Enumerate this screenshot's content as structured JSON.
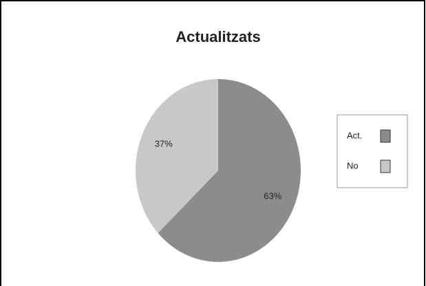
{
  "chart_data": {
    "type": "pie",
    "title": "Actualitzats",
    "categories": [
      "Act.",
      "No"
    ],
    "values": [
      63,
      37
    ],
    "value_labels": [
      "63%",
      "37%"
    ],
    "colors": [
      "#8c8c8c",
      "#c8c8c8"
    ],
    "legend": "right"
  }
}
